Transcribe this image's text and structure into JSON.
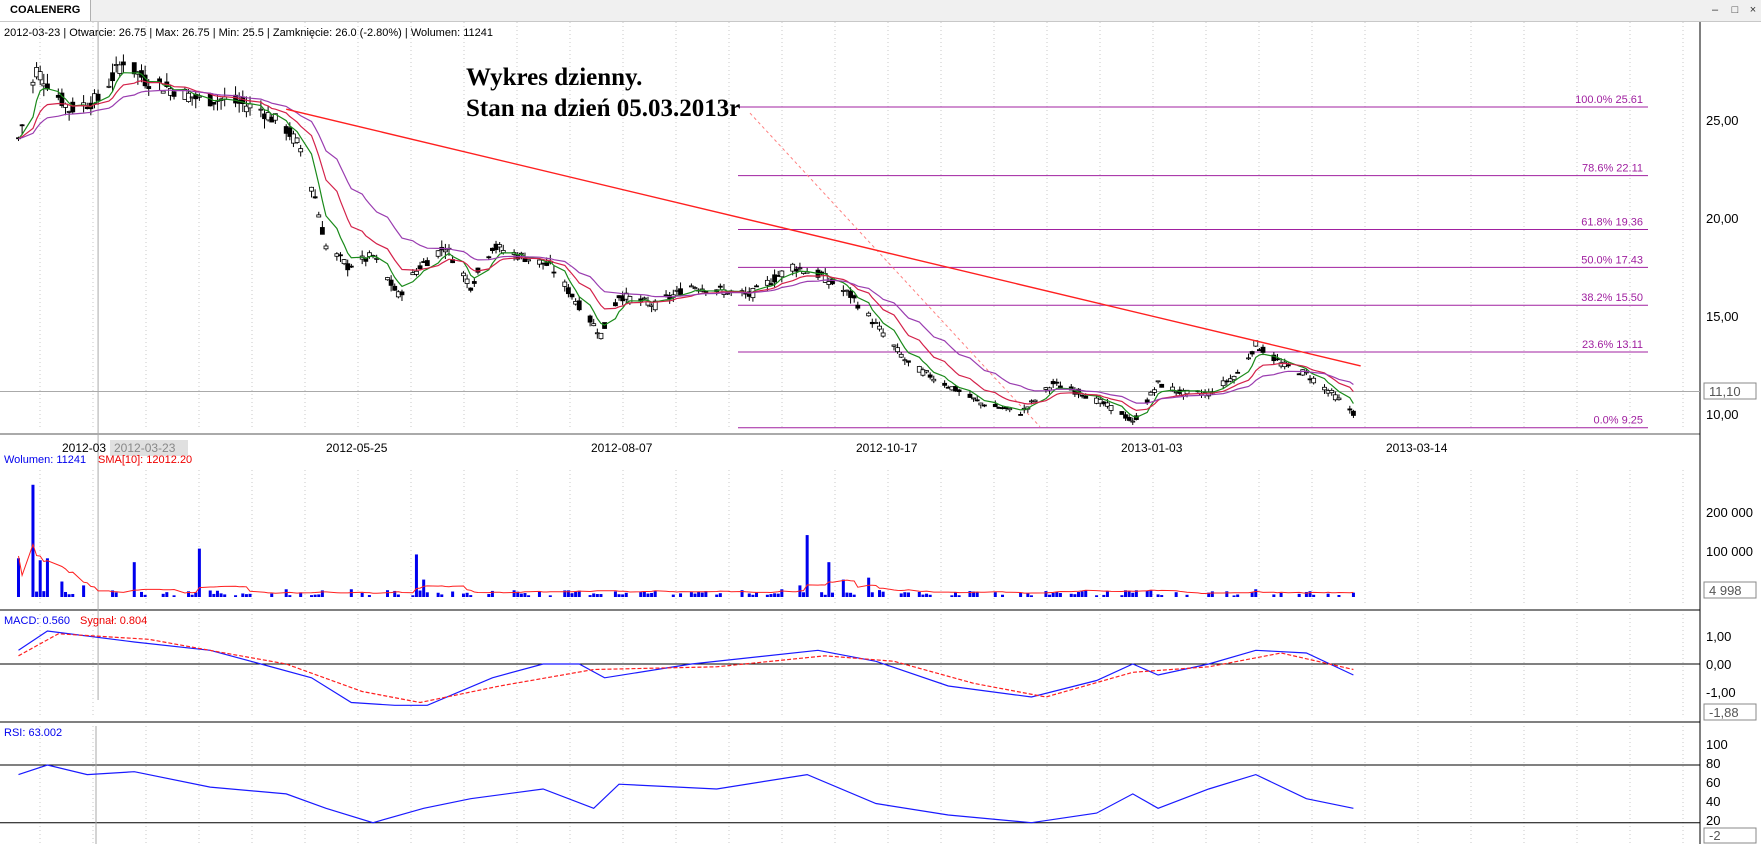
{
  "tab": {
    "label": "COALENERG"
  },
  "info_line": "2012-03-23 | Otwarcie: 26.75 | Max: 26.75 | Min: 25.5 | Zamknięcie: 26.0 (-2.80%)  | Wolumen: 11241",
  "annotation": {
    "line1": "Wykres dzienny.",
    "line2": "Stan na dzień 05.03.2013r"
  },
  "colors": {
    "candle": "#000000",
    "ema_fast": "#1a8a1a",
    "ema_mid": "#d4224a",
    "ema_slow": "#9a3db0",
    "trendline": "#ff2020",
    "fibo": "#a020a0",
    "volume": "#0000ee",
    "volume_sma": "#ff2020",
    "macd": "#1a1aff",
    "signal": "#ff2020",
    "rsi": "#1a1aff"
  },
  "price_axis": {
    "ticks": [
      "25,00",
      "20,00",
      "15,00",
      "10,00"
    ],
    "current_label": "11,10"
  },
  "date_axis": {
    "ticks": [
      "2012-03",
      "2012-05-25",
      "2012-08-07",
      "2012-10-17",
      "2013-01-03",
      "2013-03-14"
    ],
    "cursor_label": "2012-03-23"
  },
  "fibonacci": [
    {
      "label": "100.0% 25.61",
      "value": 25.61
    },
    {
      "label": "78.6% 22.11",
      "value": 22.11
    },
    {
      "label": "61.8% 19.36",
      "value": 19.36
    },
    {
      "label": "50.0% 17.43",
      "value": 17.43
    },
    {
      "label": "38.2% 15.50",
      "value": 15.5
    },
    {
      "label": "23.6% 13.11",
      "value": 13.11
    },
    {
      "label": "0.0% 9.25",
      "value": 9.25
    }
  ],
  "volume_panel": {
    "legend_vol": "Wolumen: 11241",
    "legend_sma": "SMA[10]: 12012.20",
    "ticks": [
      "200 000",
      "100 000"
    ],
    "current_label": "4 998"
  },
  "macd_panel": {
    "legend_macd": "MACD: 0.560",
    "legend_signal": "Sygnał: 0.804",
    "ticks": [
      "1,00",
      "0,00",
      "-1,00"
    ],
    "current_label": "-1,88"
  },
  "rsi_panel": {
    "legend": "RSI: 63.002",
    "ticks": [
      "100",
      "80",
      "60",
      "40",
      "20"
    ],
    "current_label": "-2"
  },
  "chart_data": {
    "type": "candlestick",
    "title": "COALENERG",
    "price_ylim": [
      9,
      29
    ],
    "price_path": [
      [
        "2012-03-01",
        24.0
      ],
      [
        "2012-03-06",
        27.5
      ],
      [
        "2012-03-15",
        25.5
      ],
      [
        "2012-03-23",
        26.0
      ],
      [
        "2012-03-30",
        28.0
      ],
      [
        "2012-04-05",
        27.0
      ],
      [
        "2012-04-13",
        26.5
      ],
      [
        "2012-04-20",
        26.0
      ],
      [
        "2012-04-27",
        26.0
      ],
      [
        "2012-05-07",
        25.5
      ],
      [
        "2012-05-14",
        24.5
      ],
      [
        "2012-05-18",
        23.5
      ],
      [
        "2012-05-22",
        21.0
      ],
      [
        "2012-05-25",
        18.5
      ],
      [
        "2012-05-31",
        17.5
      ],
      [
        "2012-06-07",
        18.0
      ],
      [
        "2012-06-14",
        16.0
      ],
      [
        "2012-06-20",
        17.5
      ],
      [
        "2012-06-27",
        18.5
      ],
      [
        "2012-07-04",
        16.5
      ],
      [
        "2012-07-10",
        18.5
      ],
      [
        "2012-07-18",
        18.0
      ],
      [
        "2012-07-26",
        17.5
      ],
      [
        "2012-08-03",
        15.5
      ],
      [
        "2012-08-09",
        14.0
      ],
      [
        "2012-08-14",
        16.0
      ],
      [
        "2012-08-24",
        15.5
      ],
      [
        "2012-09-03",
        16.5
      ],
      [
        "2012-09-19",
        16.0
      ],
      [
        "2012-10-01",
        17.5
      ],
      [
        "2012-10-09",
        17.0
      ],
      [
        "2012-10-17",
        16.0
      ],
      [
        "2012-10-24",
        14.5
      ],
      [
        "2012-11-02",
        12.5
      ],
      [
        "2012-11-12",
        11.5
      ],
      [
        "2012-11-22",
        10.5
      ],
      [
        "2012-12-03",
        10.0
      ],
      [
        "2012-12-12",
        11.5
      ],
      [
        "2012-12-20",
        11.0
      ],
      [
        "2012-12-31",
        10.0
      ],
      [
        "2013-01-03",
        9.5
      ],
      [
        "2013-01-10",
        11.5
      ],
      [
        "2013-01-17",
        11.0
      ],
      [
        "2013-01-24",
        11.0
      ],
      [
        "2013-02-01",
        12.0
      ],
      [
        "2013-02-06",
        13.5
      ],
      [
        "2013-02-13",
        12.5
      ],
      [
        "2013-02-20",
        12.0
      ],
      [
        "2013-02-27",
        11.0
      ],
      [
        "2013-03-05",
        10.0
      ]
    ],
    "trendline": [
      [
        "2012-05-14",
        25.5
      ],
      [
        "2013-03-07",
        12.4
      ]
    ],
    "volume": [
      [
        "2012-03-01",
        100000
      ],
      [
        "2012-03-05",
        290000
      ],
      [
        "2012-03-07",
        95000
      ],
      [
        "2012-03-09",
        100000
      ],
      [
        "2012-03-13",
        40000
      ],
      [
        "2012-03-19",
        30000
      ],
      [
        "2012-04-02",
        90000
      ],
      [
        "2012-04-20",
        125000
      ],
      [
        "2012-05-14",
        20000
      ],
      [
        "2012-06-01",
        20000
      ],
      [
        "2012-06-19",
        110000
      ],
      [
        "2012-06-21",
        45000
      ],
      [
        "2012-09-28",
        20000
      ],
      [
        "2012-10-03",
        30000
      ],
      [
        "2012-10-05",
        160000
      ],
      [
        "2012-10-11",
        90000
      ],
      [
        "2012-10-15",
        45000
      ],
      [
        "2012-10-22",
        50000
      ],
      [
        "2013-02-06",
        20000
      ],
      [
        "2013-03-05",
        11241
      ]
    ],
    "volume_ylim": [
      0,
      300000
    ],
    "macd": [
      [
        "2012-03-01",
        0.5
      ],
      [
        "2012-03-09",
        1.2
      ],
      [
        "2012-04-02",
        0.8
      ],
      [
        "2012-04-23",
        0.5
      ],
      [
        "2012-05-07",
        0.0
      ],
      [
        "2012-05-21",
        -0.5
      ],
      [
        "2012-06-01",
        -1.4
      ],
      [
        "2012-06-13",
        -1.5
      ],
      [
        "2012-06-22",
        -1.5
      ],
      [
        "2012-07-10",
        -0.5
      ],
      [
        "2012-07-24",
        0.0
      ],
      [
        "2012-08-03",
        0.0
      ],
      [
        "2012-08-10",
        -0.5
      ],
      [
        "2012-09-03",
        0.0
      ],
      [
        "2012-10-08",
        0.5
      ],
      [
        "2012-10-24",
        0.1
      ],
      [
        "2012-11-13",
        -0.8
      ],
      [
        "2012-12-06",
        -1.2
      ],
      [
        "2012-12-24",
        -0.6
      ],
      [
        "2013-01-03",
        0.0
      ],
      [
        "2013-01-10",
        -0.4
      ],
      [
        "2013-01-24",
        0.0
      ],
      [
        "2013-02-06",
        0.5
      ],
      [
        "2013-02-20",
        0.4
      ],
      [
        "2013-03-05",
        -0.4
      ]
    ],
    "signal": [
      [
        "2012-03-01",
        0.3
      ],
      [
        "2012-03-12",
        1.1
      ],
      [
        "2012-04-06",
        0.9
      ],
      [
        "2012-04-27",
        0.4
      ],
      [
        "2012-05-14",
        0.0
      ],
      [
        "2012-06-04",
        -1.0
      ],
      [
        "2012-06-20",
        -1.4
      ],
      [
        "2012-07-12",
        -0.8
      ],
      [
        "2012-08-07",
        -0.2
      ],
      [
        "2012-09-10",
        -0.1
      ],
      [
        "2012-10-10",
        0.3
      ],
      [
        "2012-10-29",
        0.1
      ],
      [
        "2012-11-20",
        -0.7
      ],
      [
        "2012-12-10",
        -1.2
      ],
      [
        "2013-01-03",
        -0.3
      ],
      [
        "2013-01-24",
        -0.1
      ],
      [
        "2013-02-13",
        0.4
      ],
      [
        "2013-03-05",
        -0.2
      ]
    ],
    "macd_ylim": [
      -2,
      1.5
    ],
    "rsi": [
      [
        "2012-03-01",
        70
      ],
      [
        "2012-03-09",
        80
      ],
      [
        "2012-03-20",
        70
      ],
      [
        "2012-04-02",
        73
      ],
      [
        "2012-04-23",
        57
      ],
      [
        "2012-05-14",
        50
      ],
      [
        "2012-05-25",
        35
      ],
      [
        "2012-06-07",
        20
      ],
      [
        "2012-06-21",
        35
      ],
      [
        "2012-07-04",
        45
      ],
      [
        "2012-07-24",
        55
      ],
      [
        "2012-08-07",
        35
      ],
      [
        "2012-08-14",
        60
      ],
      [
        "2012-09-10",
        55
      ],
      [
        "2012-10-05",
        70
      ],
      [
        "2012-10-24",
        40
      ],
      [
        "2012-11-13",
        28
      ],
      [
        "2012-12-06",
        20
      ],
      [
        "2012-12-24",
        30
      ],
      [
        "2013-01-03",
        50
      ],
      [
        "2013-01-10",
        35
      ],
      [
        "2013-01-24",
        55
      ],
      [
        "2013-02-06",
        70
      ],
      [
        "2013-02-20",
        45
      ],
      [
        "2013-03-05",
        35
      ]
    ],
    "rsi_ylim": [
      0,
      100
    ],
    "rsi_levels": [
      80,
      20
    ]
  }
}
